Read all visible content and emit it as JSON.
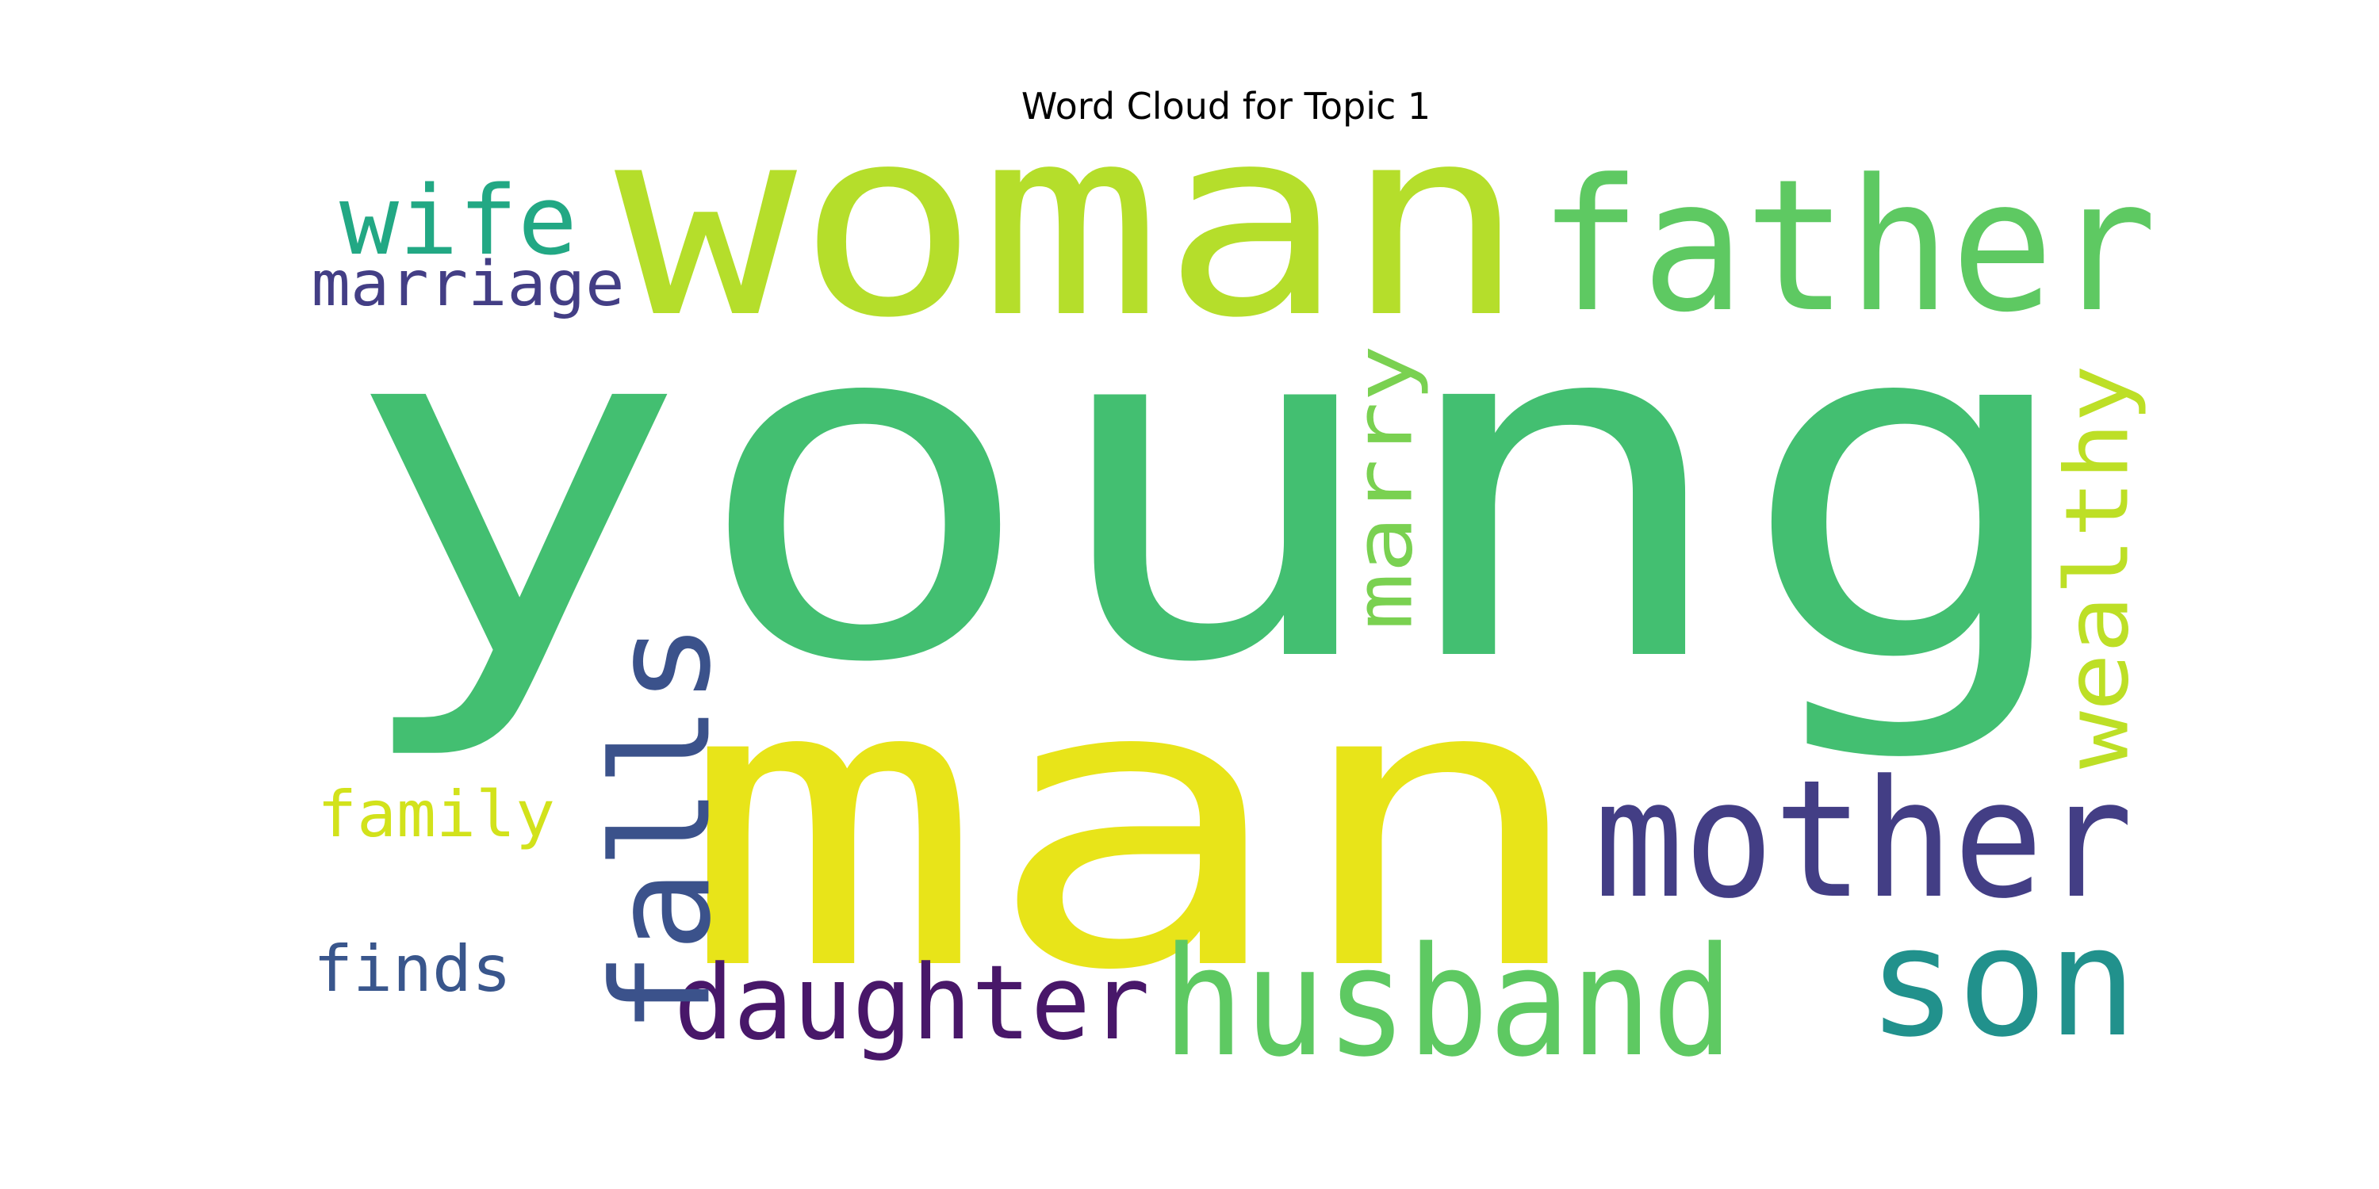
{
  "chart_data": {
    "type": "wordcloud",
    "title": "Word Cloud for Topic 1",
    "words": [
      {
        "text": "young",
        "color": "#43bf71"
      },
      {
        "text": "man",
        "color": "#e8e419"
      },
      {
        "text": "woman",
        "color": "#b5de2b"
      },
      {
        "text": "father",
        "color": "#5ec962"
      },
      {
        "text": "mother",
        "color": "#433e85"
      },
      {
        "text": "husband",
        "color": "#5ec962"
      },
      {
        "text": "son",
        "color": "#21918c"
      },
      {
        "text": "falls",
        "color": "#3b528b"
      },
      {
        "text": "wife",
        "color": "#22a884"
      },
      {
        "text": "marriage",
        "color": "#433e85"
      },
      {
        "text": "marry",
        "color": "#7ad151"
      },
      {
        "text": "wealthy",
        "color": "#bddf26"
      },
      {
        "text": "daughter",
        "color": "#481769"
      },
      {
        "text": "family",
        "color": "#d2e21b"
      },
      {
        "text": "finds",
        "color": "#39568c"
      }
    ]
  }
}
